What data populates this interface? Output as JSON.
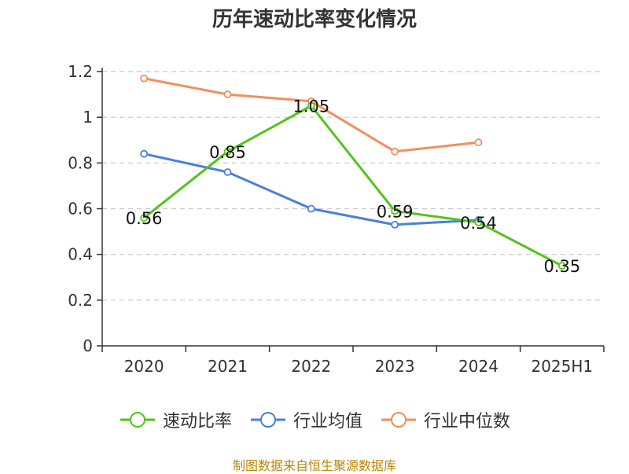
{
  "chart_data": {
    "type": "line",
    "title": "历年速动比率变化情况",
    "categories": [
      "2020",
      "2021",
      "2022",
      "2023",
      "2024",
      "2025H1"
    ],
    "ylim": [
      0,
      1.2
    ],
    "yticks": [
      "0",
      "0.2",
      "0.4",
      "0.6",
      "0.8",
      "1",
      "1.2"
    ],
    "grid": true,
    "legend_position": "bottom",
    "series": [
      {
        "name": "速动比率",
        "color": "#52c41a",
        "values": [
          0.56,
          0.85,
          1.05,
          0.59,
          0.54,
          0.35
        ],
        "labels": [
          "0.56",
          "0.85",
          "1.05",
          "0.59",
          "0.54",
          "0.35"
        ]
      },
      {
        "name": "行业均值",
        "color": "#4a7fdc",
        "values": [
          0.84,
          0.76,
          0.6,
          0.53,
          0.55,
          null
        ]
      },
      {
        "name": "行业中位数",
        "color": "#f28f5e",
        "values": [
          1.17,
          1.1,
          1.07,
          0.85,
          0.89,
          null
        ]
      }
    ]
  },
  "source_note": "制图数据来自恒生聚源数据库"
}
